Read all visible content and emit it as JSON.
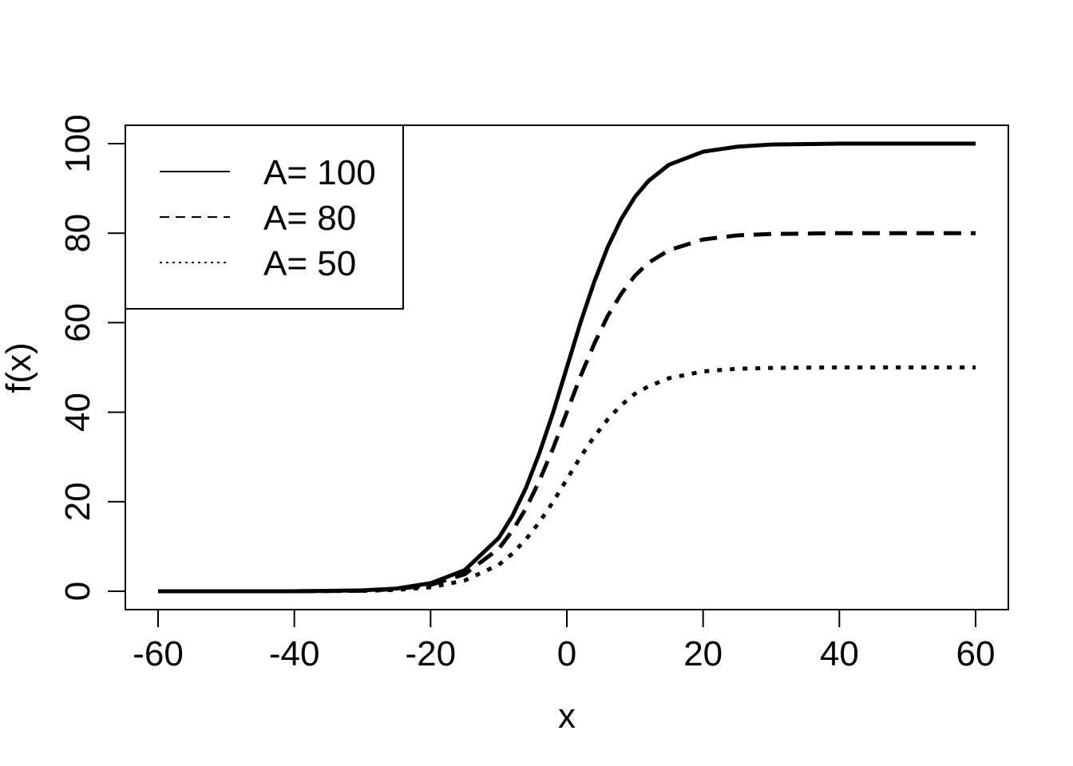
{
  "chart_data": {
    "type": "line",
    "title": "",
    "xlabel": "x",
    "ylabel": "f(x)",
    "xlim": [
      -60,
      60
    ],
    "ylim": [
      0,
      100
    ],
    "xticks": [
      -60,
      -40,
      -20,
      0,
      20,
      40,
      60
    ],
    "yticks": [
      0,
      20,
      40,
      60,
      80,
      100
    ],
    "xtick_labels": [
      "-60",
      "-40",
      "-20",
      "0",
      "20",
      "40",
      "60"
    ],
    "ytick_labels": [
      "0",
      "20",
      "40",
      "60",
      "80",
      "100"
    ],
    "legend_position": "top-left",
    "grid": false,
    "series": [
      {
        "name": "A= 100",
        "line_style": "solid",
        "color": "#000000",
        "x": [
          -60,
          -40,
          -30,
          -25,
          -20,
          -15,
          -10,
          -8,
          -6,
          -4,
          -2,
          0,
          2,
          4,
          6,
          8,
          10,
          12,
          15,
          20,
          25,
          30,
          40,
          60
        ],
        "y": [
          0,
          0,
          0.2,
          0.6,
          1.8,
          4.7,
          11.9,
          16.8,
          23.1,
          31.0,
          40.0,
          50.0,
          60.0,
          69.0,
          76.9,
          83.2,
          88.1,
          91.7,
          95.3,
          98.2,
          99.3,
          99.8,
          100,
          100
        ]
      },
      {
        "name": "A= 80",
        "line_style": "dashed",
        "color": "#000000",
        "x": [
          -60,
          -40,
          -30,
          -25,
          -20,
          -15,
          -10,
          -8,
          -6,
          -4,
          -2,
          0,
          2,
          4,
          6,
          8,
          10,
          12,
          15,
          20,
          25,
          30,
          40,
          60
        ],
        "y": [
          0,
          0,
          0.1,
          0.5,
          1.4,
          3.8,
          9.5,
          13.5,
          18.5,
          24.8,
          32.0,
          40.0,
          48.0,
          55.2,
          61.5,
          66.5,
          70.5,
          73.4,
          76.2,
          78.6,
          79.5,
          79.8,
          80,
          80
        ]
      },
      {
        "name": "A= 50",
        "line_style": "dotted",
        "color": "#000000",
        "x": [
          -60,
          -40,
          -30,
          -25,
          -20,
          -15,
          -10,
          -8,
          -6,
          -4,
          -2,
          0,
          2,
          4,
          6,
          8,
          10,
          12,
          15,
          20,
          25,
          30,
          40,
          60
        ],
        "y": [
          0,
          0,
          0.1,
          0.3,
          0.9,
          2.4,
          5.9,
          8.4,
          11.6,
          15.5,
          20.0,
          25.0,
          30.0,
          34.5,
          38.4,
          41.6,
          44.1,
          45.8,
          47.6,
          49.1,
          49.7,
          49.9,
          50,
          50
        ]
      }
    ]
  }
}
